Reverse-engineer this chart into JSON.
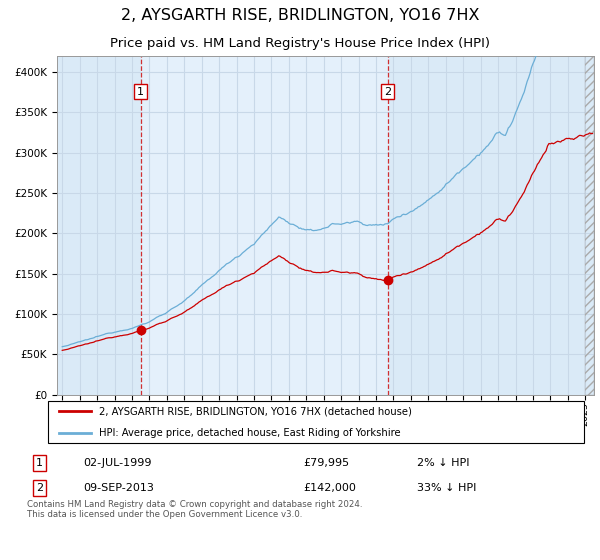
{
  "title": "2, AYSGARTH RISE, BRIDLINGTON, YO16 7HX",
  "subtitle": "Price paid vs. HM Land Registry's House Price Index (HPI)",
  "title_fontsize": 11.5,
  "subtitle_fontsize": 9.5,
  "bg_color": "#daeaf7",
  "span_color": "#e4f0fb",
  "grid_color": "#c8d8e8",
  "hpi_color": "#6baed6",
  "price_color": "#cc0000",
  "sale1_price": 79995,
  "sale2_price": 142000,
  "sale1_x": 1999.5,
  "sale2_x": 2013.667,
  "ylim": [
    0,
    420000
  ],
  "yticks": [
    0,
    50000,
    100000,
    150000,
    200000,
    250000,
    300000,
    350000,
    400000
  ],
  "xlim_left": 1994.7,
  "xlim_right": 2025.5,
  "legend_label_price": "2, AYSGARTH RISE, BRIDLINGTON, YO16 7HX (detached house)",
  "legend_label_hpi": "HPI: Average price, detached house, East Riding of Yorkshire",
  "table_row1": [
    "1",
    "02-JUL-1999",
    "£79,995",
    "2% ↓ HPI"
  ],
  "table_row2": [
    "2",
    "09-SEP-2013",
    "£142,000",
    "33% ↓ HPI"
  ],
  "footnote": "Contains HM Land Registry data © Crown copyright and database right 2024.\nThis data is licensed under the Open Government Licence v3.0."
}
